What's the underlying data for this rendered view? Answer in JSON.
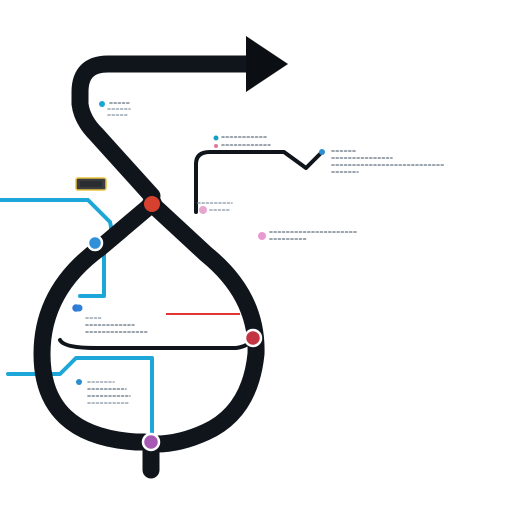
{
  "diagram": {
    "colors": {
      "track": "#0f151b",
      "branch": "#1da7d8",
      "arrowhead": "#0b0e12",
      "red_line": "#e2353a",
      "badge_border": "#e8c341"
    },
    "markers": [
      {
        "name": "junction-marker-upper",
        "color": "#d6402f"
      },
      {
        "name": "station-marker-right",
        "color": "#c43544"
      },
      {
        "name": "station-marker-bottom",
        "color": "#a75ab3"
      },
      {
        "name": "station-marker-left-upper",
        "color": "#2f8fd9"
      },
      {
        "name": "station-marker-left-lower",
        "color": "#2f78d6"
      }
    ],
    "legend_dots": [
      {
        "name": "legend-dot-cyan-top-left",
        "color": "#19a5d6"
      },
      {
        "name": "legend-dot-teal-top",
        "color": "#1a9fc4"
      },
      {
        "name": "legend-dot-pink-top",
        "color": "#e07a9a"
      },
      {
        "name": "legend-dot-blue-right",
        "color": "#2d8fd0"
      },
      {
        "name": "legend-dot-pink-middle",
        "color": "#e7a6cf"
      },
      {
        "name": "legend-dot-pink-right",
        "color": "#e89ad0"
      },
      {
        "name": "legend-dot-blue-left",
        "color": "#2d7fd8"
      },
      {
        "name": "legend-dot-blue-bottom-left",
        "color": "#2d8fd0"
      }
    ]
  }
}
